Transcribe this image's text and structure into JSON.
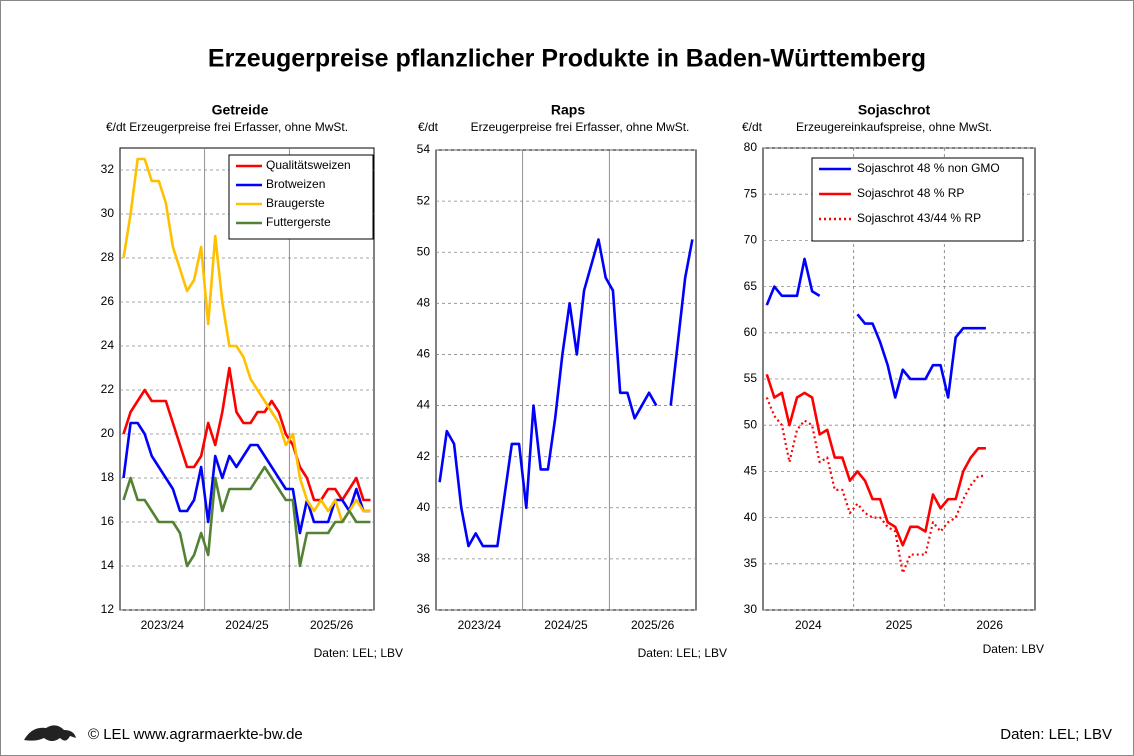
{
  "title": "Erzeugerpreise pflanzlicher Produkte in Baden-Württemberg",
  "footer": {
    "copyright": "© LEL www.agrarmaerkte-bw.de",
    "source": "Daten: LEL; LBV"
  },
  "chart_data": [
    {
      "type": "line",
      "title": "Getreide",
      "subtitle": "€/dt Erzeugerpreise  frei Erfasser,  ohne MwSt.",
      "source": "Daten: LEL; LBV",
      "categories": [
        null,
        null,
        null,
        null,
        null,
        null,
        "2023/24",
        null,
        null,
        null,
        null,
        null,
        null,
        null,
        null,
        null,
        null,
        null,
        "2024/25",
        null,
        null,
        null,
        null,
        null,
        null,
        null,
        null,
        null,
        null,
        null,
        "2025/26",
        null,
        null,
        null,
        null,
        null
      ],
      "series": [
        {
          "name": "Qualitätsweizen",
          "color": "#ff0000",
          "values": [
            20,
            21,
            21.5,
            22,
            21.5,
            21.5,
            21.5,
            20.5,
            19.5,
            18.5,
            18.5,
            19,
            20.5,
            19.5,
            21,
            23,
            21,
            20.5,
            20.5,
            21,
            21,
            21.5,
            21,
            20,
            19.5,
            18.5,
            18,
            17,
            17,
            17.5,
            17.5,
            17,
            17.5,
            18,
            17,
            17
          ]
        },
        {
          "name": "Brotweizen",
          "color": "#0000ff",
          "values": [
            18,
            20.5,
            20.5,
            20,
            19,
            18.5,
            18,
            17.5,
            16.5,
            16.5,
            17,
            18.5,
            16,
            19,
            18,
            19,
            18.5,
            19,
            19.5,
            19.5,
            19,
            18.5,
            18,
            17.5,
            17.5,
            15.5,
            17,
            16,
            16,
            16,
            17,
            17,
            16.5,
            17.5,
            16.5,
            16.5
          ]
        },
        {
          "name": "Braugerste",
          "color": "#ffc000",
          "values": [
            28,
            30,
            32.5,
            32.5,
            31.5,
            31.5,
            30.5,
            28.5,
            27.5,
            26.5,
            27,
            28.5,
            25,
            29,
            26,
            24,
            24,
            23.5,
            22.5,
            22,
            21.5,
            21,
            20.5,
            19.5,
            20,
            18,
            17,
            16.5,
            17,
            16.5,
            17,
            16,
            16.5,
            17,
            16.5,
            16.5
          ]
        },
        {
          "name": "Futtergerste",
          "color": "#548235",
          "values": [
            17,
            18,
            17,
            17,
            16.5,
            16,
            16,
            16,
            15.5,
            14,
            14.5,
            15.5,
            14.5,
            18,
            16.5,
            17.5,
            17.5,
            17.5,
            17.5,
            18,
            18.5,
            18,
            17.5,
            17,
            17,
            14,
            15.5,
            15.5,
            15.5,
            15.5,
            16,
            16,
            16.5,
            16,
            16,
            16
          ]
        }
      ],
      "ylim": [
        12,
        33
      ],
      "yticks": [
        12,
        14,
        16,
        18,
        20,
        22,
        24,
        26,
        28,
        30,
        32
      ],
      "grid": true,
      "legend": "top-right"
    },
    {
      "type": "line",
      "title": "Raps",
      "y_unit": "€/dt",
      "subtitle": "Erzeugerpreise  frei Erfasser,  ohne MwSt.",
      "source": "Daten: LEL; LBV",
      "categories": [
        null,
        null,
        null,
        null,
        null,
        null,
        "2023/24",
        null,
        null,
        null,
        null,
        null,
        null,
        null,
        null,
        null,
        null,
        null,
        "2024/25",
        null,
        null,
        null,
        null,
        null,
        null,
        null,
        null,
        null,
        null,
        null,
        "2025/26",
        null,
        null,
        null,
        null,
        null
      ],
      "series": [
        {
          "name": "Raps",
          "color": "#0000ff",
          "values": [
            41,
            43,
            42.5,
            40,
            38.5,
            39,
            38.5,
            38.5,
            38.5,
            40.5,
            42.5,
            42.5,
            40,
            44,
            41.5,
            41.5,
            43.5,
            46,
            48,
            46,
            48.5,
            49.5,
            50.5,
            49,
            48.5,
            44.5,
            44.5,
            43.5,
            44,
            44.5,
            44,
            null,
            44,
            46.5,
            49,
            50.5
          ]
        }
      ],
      "ylim": [
        36,
        54
      ],
      "yticks": [
        36,
        38,
        40,
        42,
        44,
        46,
        48,
        50,
        52,
        54
      ],
      "grid": true
    },
    {
      "type": "line",
      "title": "Sojaschrot",
      "y_unit": "€/dt",
      "subtitle": "Erzeugereinkaufspreise,  ohne MwSt.",
      "source": "Daten: LBV",
      "categories": [
        null,
        null,
        null,
        null,
        null,
        null,
        "2024",
        null,
        null,
        null,
        null,
        null,
        null,
        null,
        null,
        null,
        null,
        null,
        "2025",
        null,
        null,
        null,
        null,
        null,
        null,
        null,
        null,
        null,
        null,
        null,
        "2026",
        null,
        null,
        null,
        null,
        null
      ],
      "series": [
        {
          "name": "Sojaschrot 48 % non GMO",
          "color": "#0000ff",
          "style": "solid",
          "values": [
            63,
            65,
            64,
            64,
            64,
            68,
            64.5,
            64,
            null,
            null,
            null,
            null,
            62,
            61,
            61,
            59,
            56.5,
            53,
            56,
            55,
            55,
            55,
            56.5,
            56.5,
            53,
            59.5,
            60.5,
            60.5,
            60.5,
            60.5,
            null,
            null,
            null,
            null,
            null,
            null
          ]
        },
        {
          "name": "Sojaschrot 48 % RP",
          "color": "#ff0000",
          "style": "solid",
          "values": [
            55.5,
            53,
            53.5,
            50,
            53,
            53.5,
            53,
            49,
            49.5,
            46.5,
            46.5,
            44,
            45,
            44,
            42,
            42,
            39.5,
            39,
            37,
            39,
            39,
            38.5,
            42.5,
            41,
            42,
            42,
            45,
            46.5,
            47.5,
            47.5,
            null,
            null,
            null,
            null,
            null,
            null
          ]
        },
        {
          "name": "Sojaschrot 43/44 % RP",
          "color": "#ff0000",
          "style": "dotted",
          "values": [
            53,
            51,
            50,
            46,
            49.5,
            50.5,
            50,
            46,
            46.5,
            43,
            43,
            40.5,
            41.5,
            40.5,
            40,
            40,
            39,
            38.5,
            34,
            36,
            36,
            36,
            39.5,
            38.5,
            39.5,
            40,
            42,
            43.5,
            44.5,
            44.5,
            null,
            null,
            null,
            null,
            null,
            null
          ]
        }
      ],
      "ylim": [
        30,
        80
      ],
      "yticks": [
        30,
        35,
        40,
        45,
        50,
        55,
        60,
        65,
        70,
        75,
        80
      ],
      "grid": true,
      "legend": "top-right"
    }
  ]
}
